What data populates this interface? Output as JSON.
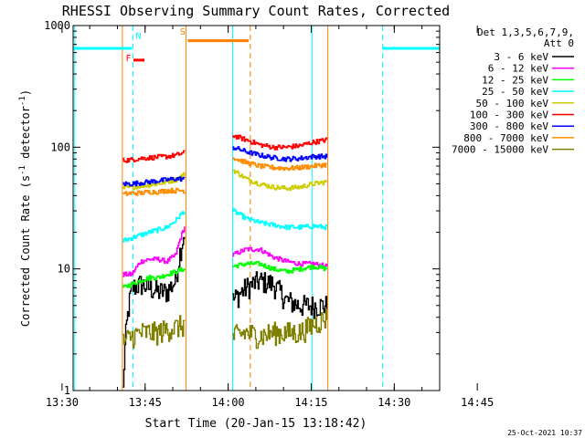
{
  "chart_data": {
    "type": "line",
    "title": "RHESSI Observing Summary Count Rates, Corrected",
    "xlabel": "Start Time (20-Jan-15 13:18:42)",
    "ylabel": "Corrected Count Rate (s⁻¹ detector⁻¹)",
    "ylabel_parts": [
      "Corrected Count Rate (s",
      "-1",
      " detector",
      "-1",
      ")"
    ],
    "yscale": "log",
    "ylim": [
      1,
      1000
    ],
    "xlim_minutes": [
      13.3,
      79.5
    ],
    "x_unit": "minutes after 13:18:42",
    "x_tick_labels": [
      "13:30",
      "13:45",
      "14:00",
      "14:15",
      "14:30",
      "14:45"
    ],
    "y_tick_labels": [
      "1",
      "10",
      "100",
      "1000"
    ],
    "legend_header": [
      "Det 1,3,5,6,7,9,",
      "Att 0"
    ],
    "stamp": "25-Oct-2021 10:37",
    "segments": [
      [
        22.3,
        33.4
      ],
      [
        42.1,
        59.1
      ]
    ],
    "series": [
      {
        "name": "3 - 6 keV",
        "color": "#000000",
        "intervals": [
          {
            "start": 22.3,
            "end": 33.4,
            "values": [
              1.0,
              7.0,
              7.5,
              7.0,
              6.5,
              6.5,
              8.0,
              20.0
            ]
          },
          {
            "start": 42.1,
            "end": 59.1,
            "values": [
              5.5,
              7.0,
              8.0,
              7.5,
              5.5,
              5.0,
              5.0,
              5.0
            ]
          }
        ]
      },
      {
        "name": "6 - 12 keV",
        "color": "#ff00ff",
        "intervals": [
          {
            "start": 22.3,
            "end": 33.4,
            "values": [
              9.0,
              9.0,
              11.5,
              12.0,
              12.0,
              11.5,
              13.0,
              22.0
            ]
          },
          {
            "start": 42.1,
            "end": 59.1,
            "values": [
              13.0,
              14.5,
              14.5,
              12.5,
              11.5,
              11.0,
              11.0,
              10.5
            ]
          }
        ]
      },
      {
        "name": "12 - 25 keV",
        "color": "#00ff00",
        "intervals": [
          {
            "start": 22.3,
            "end": 33.4,
            "values": [
              7.0,
              7.5,
              8.0,
              8.5,
              8.5,
              9.0,
              9.5,
              10.0
            ]
          },
          {
            "start": 42.1,
            "end": 59.1,
            "values": [
              10.5,
              11.0,
              11.0,
              10.0,
              9.5,
              10.0,
              10.5,
              10.0
            ]
          }
        ]
      },
      {
        "name": "25 - 50 keV",
        "color": "#00ffff",
        "intervals": [
          {
            "start": 22.3,
            "end": 33.4,
            "values": [
              17.0,
              18.0,
              19.0,
              20.0,
              21.0,
              22.0,
              25.0,
              30.0
            ]
          },
          {
            "start": 42.1,
            "end": 59.1,
            "values": [
              30.0,
              26.0,
              24.0,
              23.0,
              22.0,
              22.0,
              22.5,
              22.0
            ]
          }
        ]
      },
      {
        "name": "50 - 100 keV",
        "color": "#cccc00",
        "intervals": [
          {
            "start": 22.3,
            "end": 33.4,
            "values": [
              46.0,
              47.0,
              48.0,
              49.0,
              50.0,
              52.0,
              54.0,
              60.0
            ]
          },
          {
            "start": 42.1,
            "end": 59.1,
            "values": [
              65.0,
              55.0,
              50.0,
              47.0,
              46.0,
              47.0,
              50.0,
              52.0
            ]
          }
        ]
      },
      {
        "name": "100 - 300 keV",
        "color": "#ff0000",
        "intervals": [
          {
            "start": 22.3,
            "end": 33.4,
            "values": [
              78.0,
              79.0,
              81.0,
              82.0,
              83.0,
              84.0,
              86.0,
              90.0
            ]
          },
          {
            "start": 42.1,
            "end": 59.1,
            "values": [
              125.0,
              115.0,
              105.0,
              100.0,
              100.0,
              103.0,
              110.0,
              115.0
            ]
          }
        ]
      },
      {
        "name": "300 - 800 keV",
        "color": "#0000ff",
        "intervals": [
          {
            "start": 22.3,
            "end": 33.4,
            "values": [
              50.0,
              50.0,
              51.0,
              52.0,
              53.0,
              54.0,
              55.0,
              55.0
            ]
          },
          {
            "start": 42.1,
            "end": 59.1,
            "values": [
              100.0,
              92.0,
              86.0,
              82.0,
              80.0,
              81.0,
              84.0,
              84.0
            ]
          }
        ]
      },
      {
        "name": "800 - 7000 keV",
        "color": "#ff8c00",
        "intervals": [
          {
            "start": 22.3,
            "end": 33.4,
            "values": [
              41.0,
              42.0,
              42.0,
              43.0,
              43.0,
              44.0,
              44.0,
              44.0
            ]
          },
          {
            "start": 42.1,
            "end": 59.1,
            "values": [
              82.0,
              75.0,
              70.0,
              68.0,
              67.0,
              68.0,
              70.0,
              72.0
            ]
          }
        ]
      },
      {
        "name": "7000 - 15000 keV",
        "color": "#808000",
        "intervals": [
          {
            "start": 22.3,
            "end": 33.4,
            "values": [
              2.5,
              2.8,
              3.0,
              3.0,
              3.0,
              3.2,
              3.3,
              3.5
            ]
          },
          {
            "start": 42.1,
            "end": 59.1,
            "values": [
              2.8,
              3.0,
              2.8,
              3.0,
              3.0,
              3.0,
              3.5,
              4.0
            ]
          }
        ]
      }
    ],
    "flag_lines": [
      {
        "code": "N",
        "color": "#00ffff",
        "y": 650,
        "style": "solid",
        "from": 13.3,
        "to": 23.9
      },
      {
        "code": "N",
        "color": "#00ffff",
        "y": 650,
        "style": "solid",
        "from": 69.2,
        "to": 79.5
      },
      {
        "code": "F",
        "color": "#ff0000",
        "y": 520,
        "style": "solid",
        "from": 24.2,
        "to": 26.2
      },
      {
        "code": "S",
        "color": "#ff8000",
        "y": 750,
        "style": "solid",
        "from": 34.0,
        "to": 45.0
      }
    ],
    "flag_labels": [
      {
        "text": "N",
        "color": "#00ffff",
        "x": 24.6,
        "y": 780
      },
      {
        "text": "F",
        "color": "#ff0000",
        "x": 22.8,
        "y": 510
      },
      {
        "text": "S",
        "color": "#ff8000",
        "x": 32.6,
        "y": 840
      }
    ],
    "vertical_markers": [
      {
        "x": 13.6,
        "color": "#00ffff",
        "style": "solid"
      },
      {
        "x": 24.1,
        "color": "#00ffff",
        "style": "dashed"
      },
      {
        "x": 22.2,
        "color": "#ff8000",
        "style": "solid"
      },
      {
        "x": 33.7,
        "color": "#ff8000",
        "style": "solid"
      },
      {
        "x": 45.3,
        "color": "#ff8000",
        "style": "dashed"
      },
      {
        "x": 42.1,
        "color": "#00ffff",
        "style": "solid"
      },
      {
        "x": 59.3,
        "color": "#ff8000",
        "style": "solid"
      },
      {
        "x": 56.5,
        "color": "#00ffff",
        "style": "solid"
      },
      {
        "x": 69.2,
        "color": "#00ffff",
        "style": "dashed"
      }
    ]
  }
}
